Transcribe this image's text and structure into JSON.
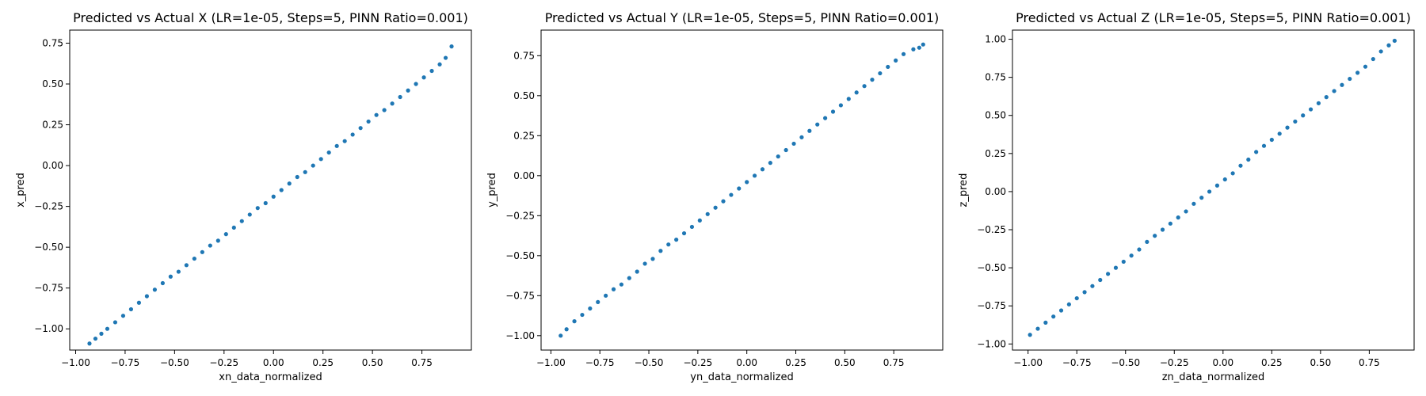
{
  "chart_data": [
    {
      "type": "scatter",
      "title": "Predicted vs Actual X (LR=1e-05, Steps=5, PINN Ratio=0.001)",
      "xlabel": "xn_data_normalized",
      "ylabel": "x_pred",
      "xlim": [
        -1.03,
        1.0
      ],
      "ylim": [
        -1.13,
        0.83
      ],
      "xticks": [
        -1.0,
        -0.75,
        -0.5,
        -0.25,
        0.0,
        0.25,
        0.5,
        0.75
      ],
      "xtick_labels": [
        "−1.00",
        "−0.75",
        "−0.50",
        "−0.25",
        "0.00",
        "0.25",
        "0.50",
        "0.75"
      ],
      "yticks": [
        -1.0,
        -0.75,
        -0.5,
        -0.25,
        0.0,
        0.25,
        0.5,
        0.75
      ],
      "ytick_labels": [
        "−1.00",
        "−0.75",
        "−0.50",
        "−0.25",
        "0.00",
        "0.25",
        "0.50",
        "0.75"
      ],
      "grid": false,
      "color": "#1f77b4",
      "points": [
        [
          -0.93,
          -1.09
        ],
        [
          -0.9,
          -1.06
        ],
        [
          -0.87,
          -1.03
        ],
        [
          -0.84,
          -1.0
        ],
        [
          -0.8,
          -0.96
        ],
        [
          -0.76,
          -0.92
        ],
        [
          -0.72,
          -0.88
        ],
        [
          -0.68,
          -0.84
        ],
        [
          -0.64,
          -0.8
        ],
        [
          -0.6,
          -0.76
        ],
        [
          -0.56,
          -0.72
        ],
        [
          -0.52,
          -0.68
        ],
        [
          -0.48,
          -0.65
        ],
        [
          -0.44,
          -0.61
        ],
        [
          -0.4,
          -0.57
        ],
        [
          -0.36,
          -0.53
        ],
        [
          -0.32,
          -0.49
        ],
        [
          -0.28,
          -0.46
        ],
        [
          -0.24,
          -0.42
        ],
        [
          -0.2,
          -0.38
        ],
        [
          -0.16,
          -0.34
        ],
        [
          -0.12,
          -0.3
        ],
        [
          -0.08,
          -0.26
        ],
        [
          -0.04,
          -0.23
        ],
        [
          0.0,
          -0.19
        ],
        [
          0.04,
          -0.15
        ],
        [
          0.08,
          -0.11
        ],
        [
          0.12,
          -0.07
        ],
        [
          0.16,
          -0.04
        ],
        [
          0.2,
          0.0
        ],
        [
          0.24,
          0.04
        ],
        [
          0.28,
          0.08
        ],
        [
          0.32,
          0.12
        ],
        [
          0.36,
          0.15
        ],
        [
          0.4,
          0.19
        ],
        [
          0.44,
          0.23
        ],
        [
          0.48,
          0.27
        ],
        [
          0.52,
          0.31
        ],
        [
          0.56,
          0.34
        ],
        [
          0.6,
          0.38
        ],
        [
          0.64,
          0.42
        ],
        [
          0.68,
          0.46
        ],
        [
          0.72,
          0.5
        ],
        [
          0.76,
          0.54
        ],
        [
          0.8,
          0.58
        ],
        [
          0.84,
          0.62
        ],
        [
          0.87,
          0.66
        ],
        [
          0.9,
          0.73
        ]
      ]
    },
    {
      "type": "scatter",
      "title": "Predicted vs Actual Y (LR=1e-05, Steps=5, PINN Ratio=0.001)",
      "xlabel": "yn_data_normalized",
      "ylabel": "y_pred",
      "xlim": [
        -1.05,
        1.0
      ],
      "ylim": [
        -1.09,
        0.91
      ],
      "xticks": [
        -1.0,
        -0.75,
        -0.5,
        -0.25,
        0.0,
        0.25,
        0.5,
        0.75
      ],
      "xtick_labels": [
        "−1.00",
        "−0.75",
        "−0.50",
        "−0.25",
        "0.00",
        "0.25",
        "0.50",
        "0.75"
      ],
      "yticks": [
        -1.0,
        -0.75,
        -0.5,
        -0.25,
        0.0,
        0.25,
        0.5,
        0.75
      ],
      "ytick_labels": [
        "−1.00",
        "−0.75",
        "−0.50",
        "−0.25",
        "0.00",
        "0.25",
        "0.50",
        "0.75"
      ],
      "grid": false,
      "color": "#1f77b4",
      "points": [
        [
          -0.95,
          -1.0
        ],
        [
          -0.92,
          -0.96
        ],
        [
          -0.88,
          -0.91
        ],
        [
          -0.84,
          -0.87
        ],
        [
          -0.8,
          -0.83
        ],
        [
          -0.76,
          -0.79
        ],
        [
          -0.72,
          -0.75
        ],
        [
          -0.68,
          -0.71
        ],
        [
          -0.64,
          -0.68
        ],
        [
          -0.6,
          -0.64
        ],
        [
          -0.56,
          -0.6
        ],
        [
          -0.52,
          -0.55
        ],
        [
          -0.48,
          -0.52
        ],
        [
          -0.44,
          -0.47
        ],
        [
          -0.4,
          -0.43
        ],
        [
          -0.36,
          -0.4
        ],
        [
          -0.32,
          -0.36
        ],
        [
          -0.28,
          -0.32
        ],
        [
          -0.24,
          -0.28
        ],
        [
          -0.2,
          -0.24
        ],
        [
          -0.16,
          -0.2
        ],
        [
          -0.12,
          -0.16
        ],
        [
          -0.08,
          -0.12
        ],
        [
          -0.04,
          -0.08
        ],
        [
          0.0,
          -0.04
        ],
        [
          0.04,
          0.0
        ],
        [
          0.08,
          0.04
        ],
        [
          0.12,
          0.08
        ],
        [
          0.16,
          0.12
        ],
        [
          0.2,
          0.16
        ],
        [
          0.24,
          0.2
        ],
        [
          0.28,
          0.24
        ],
        [
          0.32,
          0.28
        ],
        [
          0.36,
          0.32
        ],
        [
          0.4,
          0.36
        ],
        [
          0.44,
          0.4
        ],
        [
          0.48,
          0.44
        ],
        [
          0.52,
          0.48
        ],
        [
          0.56,
          0.52
        ],
        [
          0.6,
          0.56
        ],
        [
          0.64,
          0.6
        ],
        [
          0.68,
          0.64
        ],
        [
          0.72,
          0.68
        ],
        [
          0.76,
          0.72
        ],
        [
          0.8,
          0.76
        ],
        [
          0.85,
          0.79
        ],
        [
          0.88,
          0.8
        ],
        [
          0.9,
          0.82
        ]
      ]
    },
    {
      "type": "scatter",
      "title": "Predicted vs Actual Z (LR=1e-05, Steps=5, PINN Ratio=0.001)",
      "xlabel": "zn_data_normalized",
      "ylabel": "z_pred",
      "xlim": [
        -1.08,
        0.98
      ],
      "ylim": [
        -1.04,
        1.06
      ],
      "xticks": [
        -1.0,
        -0.75,
        -0.5,
        -0.25,
        0.0,
        0.25,
        0.5,
        0.75
      ],
      "xtick_labels": [
        "−1.00",
        "−0.75",
        "−0.50",
        "−0.25",
        "0.00",
        "0.25",
        "0.50",
        "0.75"
      ],
      "yticks": [
        -1.0,
        -0.75,
        -0.5,
        -0.25,
        0.0,
        0.25,
        0.5,
        0.75,
        1.0
      ],
      "ytick_labels": [
        "−1.00",
        "−0.75",
        "−0.50",
        "−0.25",
        "0.00",
        "0.25",
        "0.50",
        "0.75",
        "1.00"
      ],
      "grid": false,
      "color": "#1f77b4",
      "points": [
        [
          -0.99,
          -0.94
        ],
        [
          -0.95,
          -0.9
        ],
        [
          -0.91,
          -0.86
        ],
        [
          -0.87,
          -0.82
        ],
        [
          -0.83,
          -0.78
        ],
        [
          -0.79,
          -0.74
        ],
        [
          -0.75,
          -0.7
        ],
        [
          -0.71,
          -0.66
        ],
        [
          -0.67,
          -0.62
        ],
        [
          -0.63,
          -0.58
        ],
        [
          -0.59,
          -0.54
        ],
        [
          -0.55,
          -0.5
        ],
        [
          -0.51,
          -0.46
        ],
        [
          -0.47,
          -0.42
        ],
        [
          -0.43,
          -0.38
        ],
        [
          -0.39,
          -0.33
        ],
        [
          -0.35,
          -0.29
        ],
        [
          -0.31,
          -0.25
        ],
        [
          -0.27,
          -0.21
        ],
        [
          -0.23,
          -0.17
        ],
        [
          -0.19,
          -0.13
        ],
        [
          -0.15,
          -0.08
        ],
        [
          -0.11,
          -0.04
        ],
        [
          -0.07,
          0.0
        ],
        [
          -0.03,
          0.04
        ],
        [
          0.01,
          0.08
        ],
        [
          0.05,
          0.12
        ],
        [
          0.09,
          0.17
        ],
        [
          0.13,
          0.21
        ],
        [
          0.17,
          0.26
        ],
        [
          0.21,
          0.3
        ],
        [
          0.25,
          0.34
        ],
        [
          0.29,
          0.38
        ],
        [
          0.33,
          0.42
        ],
        [
          0.37,
          0.46
        ],
        [
          0.41,
          0.5
        ],
        [
          0.45,
          0.54
        ],
        [
          0.49,
          0.58
        ],
        [
          0.53,
          0.62
        ],
        [
          0.57,
          0.66
        ],
        [
          0.61,
          0.7
        ],
        [
          0.65,
          0.74
        ],
        [
          0.69,
          0.78
        ],
        [
          0.73,
          0.82
        ],
        [
          0.77,
          0.87
        ],
        [
          0.81,
          0.92
        ],
        [
          0.85,
          0.96
        ],
        [
          0.88,
          0.99
        ]
      ]
    }
  ]
}
